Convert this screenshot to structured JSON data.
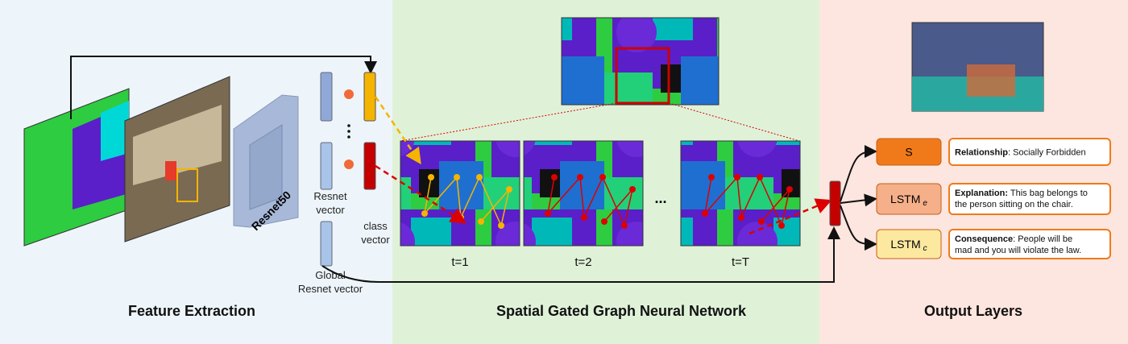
{
  "sections": [
    {
      "title": "Feature Extraction"
    },
    {
      "title": "Spatial Gated Graph Neural Network"
    },
    {
      "title": "Output Layers"
    }
  ],
  "backbone": "Resnet50",
  "vectors": {
    "resnet": [
      "Resnet",
      "vector"
    ],
    "class": [
      "class",
      "vector"
    ],
    "global": [
      "Global",
      "Resnet vector"
    ]
  },
  "frames": [
    {
      "label": "t=1"
    },
    {
      "label": "t=2"
    },
    {
      "label": "t=T"
    }
  ],
  "ellipsis": "...",
  "outputs": [
    {
      "module": "S",
      "heading": "Relationship",
      "lines": [
        ": Socially Forbidden"
      ]
    },
    {
      "module": "LSTM",
      "sub": "e",
      "heading": "Explanation:",
      "lines": [
        " This bag belongs to",
        "the person sitting on the chair."
      ]
    },
    {
      "module": "LSTM",
      "sub": "c",
      "heading": "Consequence",
      "lines": [
        ": People will be",
        "mad and you will violate the law."
      ]
    }
  ]
}
